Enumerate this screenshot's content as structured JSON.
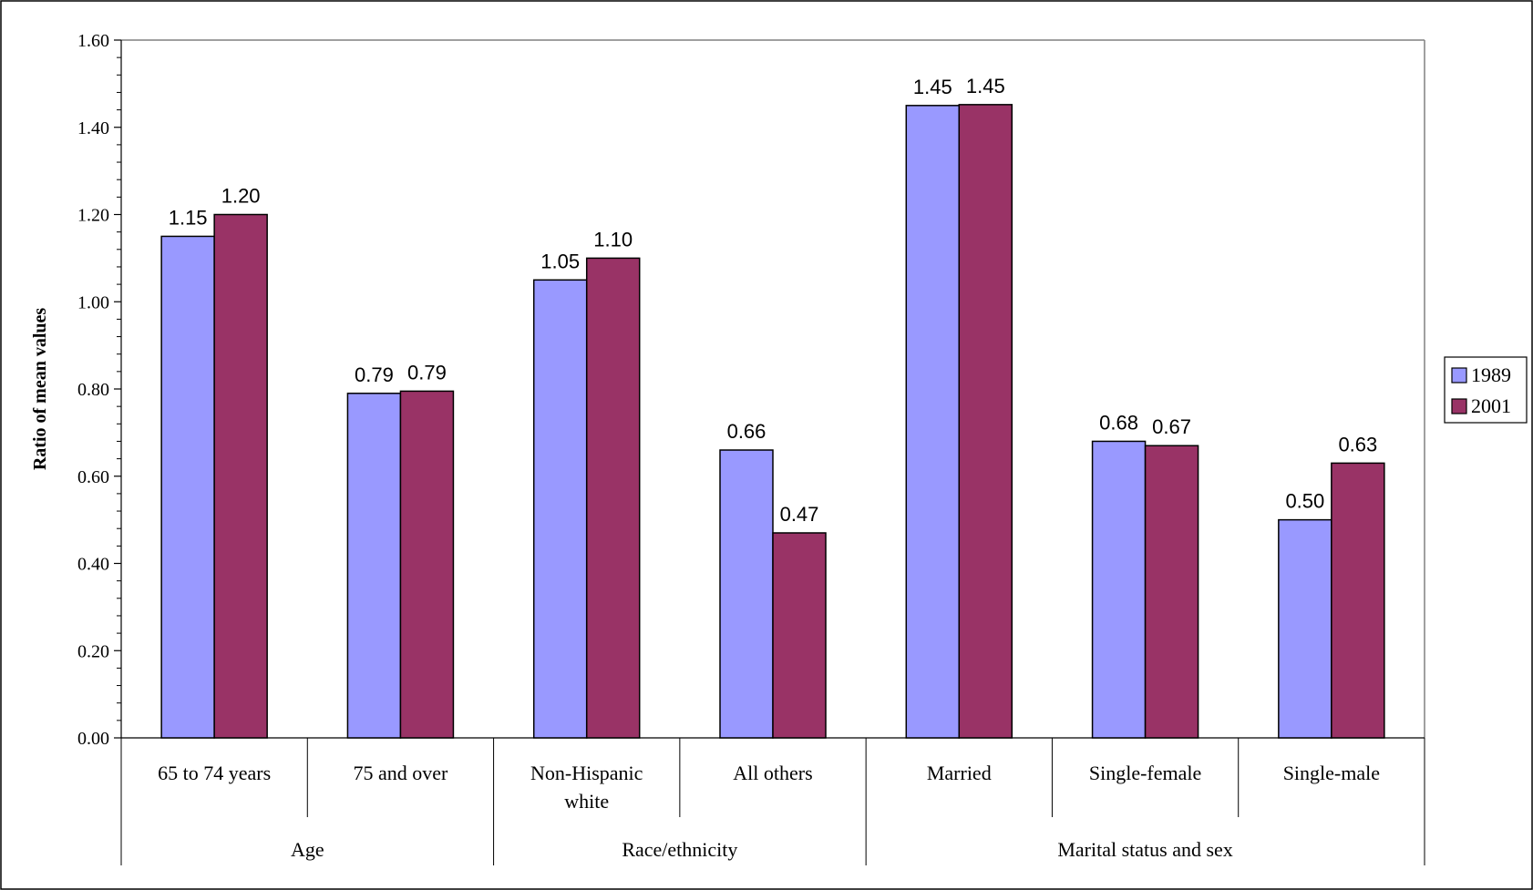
{
  "chart_data": {
    "type": "bar",
    "ylabel": "Ratio of mean values",
    "ylim": [
      0,
      1.6
    ],
    "y_ticks": [
      "0.00",
      "0.20",
      "0.40",
      "0.60",
      "0.80",
      "1.00",
      "1.20",
      "1.40",
      "1.60"
    ],
    "grid": false,
    "legend_position": "right",
    "categories": [
      [
        "65 to 74 years"
      ],
      [
        "75 and over"
      ],
      [
        "Non-Hispanic",
        "white"
      ],
      [
        "All others"
      ],
      [
        "Married"
      ],
      [
        "Single-female"
      ],
      [
        "Single-male"
      ]
    ],
    "groups": [
      {
        "label": "Age",
        "span": [
          0,
          1
        ]
      },
      {
        "label": "Race/ethnicity",
        "span": [
          2,
          3
        ]
      },
      {
        "label": "Marital status and sex",
        "span": [
          4,
          6
        ]
      }
    ],
    "series": [
      {
        "name": "1989",
        "color": "#9999ff",
        "values": [
          1.15,
          0.79,
          1.05,
          0.66,
          1.45,
          0.68,
          0.5
        ],
        "labels": [
          "1.15",
          "0.79",
          "1.05",
          "0.66",
          "1.45",
          "0.68",
          "0.50"
        ]
      },
      {
        "name": "2001",
        "color": "#993366",
        "values": [
          1.2,
          0.795,
          1.1,
          0.47,
          1.452,
          0.67,
          0.63
        ],
        "labels": [
          "1.20",
          "0.79",
          "1.10",
          "0.47",
          "1.45",
          "0.67",
          "0.63"
        ]
      }
    ]
  }
}
